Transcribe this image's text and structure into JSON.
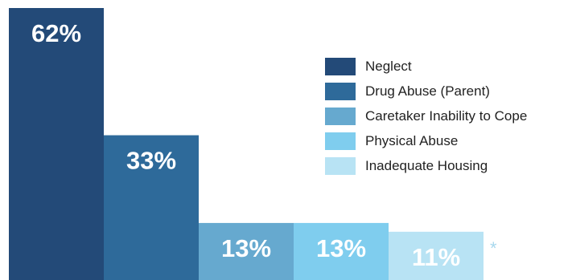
{
  "chart_data": {
    "type": "bar",
    "categories": [
      "Neglect",
      "Drug Abuse (Parent)",
      "Caretaker Inability to Cope",
      "Physical Abuse",
      "Inadequate Housing"
    ],
    "values": [
      62,
      33,
      13,
      13,
      11
    ],
    "value_labels": [
      "62%",
      "33%",
      "13%",
      "13%",
      "11%"
    ],
    "colors": [
      "#234a78",
      "#2e6a9a",
      "#66a9cf",
      "#7fcdee",
      "#b8e3f4"
    ],
    "ylim": [
      0,
      62
    ],
    "grid": false,
    "legend_position": "top-right",
    "annotation": "*",
    "annotation_color": "#a8d8ee",
    "title": "",
    "xlabel": "",
    "ylabel": ""
  },
  "legend": {
    "items": [
      {
        "label": "Neglect"
      },
      {
        "label": "Drug Abuse (Parent)"
      },
      {
        "label": "Caretaker Inability to Cope"
      },
      {
        "label": "Physical Abuse"
      },
      {
        "label": "Inadequate Housing"
      }
    ]
  }
}
